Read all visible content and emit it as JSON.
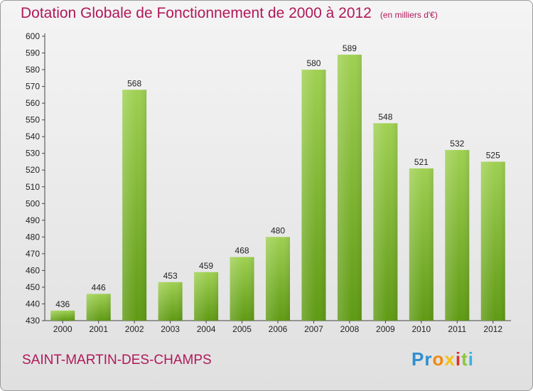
{
  "chart_data": {
    "type": "bar",
    "title": "Dotation Globale de Fonctionnement de 2000 à 2012",
    "subtitle": "(en milliers d'€)",
    "categories": [
      "2000",
      "2001",
      "2002",
      "2003",
      "2004",
      "2005",
      "2006",
      "2007",
      "2008",
      "2009",
      "2010",
      "2011",
      "2012"
    ],
    "values": [
      436,
      446,
      568,
      453,
      459,
      468,
      480,
      580,
      589,
      548,
      521,
      532,
      525
    ],
    "yticks": [
      430,
      440,
      450,
      460,
      470,
      480,
      490,
      500,
      510,
      520,
      530,
      540,
      550,
      560,
      570,
      580,
      590,
      600
    ],
    "ylim": [
      430,
      600
    ],
    "grid": false,
    "colors": {
      "bar_light": "#9fd052",
      "bar_dark": "#5f9a14",
      "title": "#b0185a"
    }
  },
  "footer": {
    "commune": "SAINT-MARTIN-DES-CHAMPS",
    "logo_letters": [
      {
        "ch": "P",
        "color": "#2e8fd0"
      },
      {
        "ch": "r",
        "color": "#2e8fd0"
      },
      {
        "ch": "o",
        "color": "#f08a12"
      },
      {
        "ch": "x",
        "color": "#f2c21a"
      },
      {
        "ch": "i",
        "color": "#d8322b"
      },
      {
        "ch": "t",
        "color": "#8cc63f"
      },
      {
        "ch": "i",
        "color": "#3ab0e0"
      }
    ]
  }
}
